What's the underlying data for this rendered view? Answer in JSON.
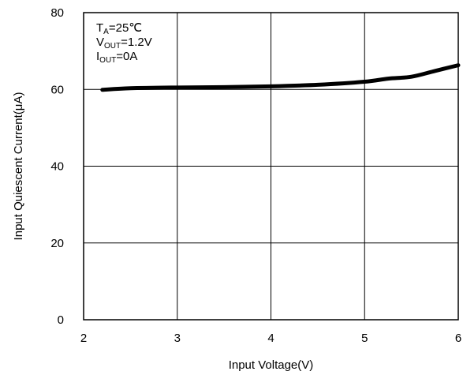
{
  "chart_data": {
    "type": "line",
    "title": "",
    "xlabel": "Input Voltage(V)",
    "ylabel": "Input Quiescent Current(μA)",
    "xlim": [
      2,
      6
    ],
    "ylim": [
      0,
      80
    ],
    "x_ticks": [
      "2",
      "3",
      "4",
      "5",
      "6"
    ],
    "y_ticks": [
      "0",
      "20",
      "40",
      "60",
      "80"
    ],
    "grid": true,
    "conditions": [
      {
        "main": "T",
        "sub": "A",
        "rest": "=25℃"
      },
      {
        "main": "V",
        "sub": "OUT",
        "rest": "=1.2V"
      },
      {
        "main": "I",
        "sub": "OUT",
        "rest": "=0A"
      }
    ],
    "series": [
      {
        "color": "#000000",
        "x": [
          2.2,
          2.5,
          3.0,
          3.5,
          4.0,
          4.5,
          5.0,
          5.25,
          5.5,
          5.75,
          6.0
        ],
        "y": [
          59.9,
          60.3,
          60.5,
          60.6,
          60.8,
          61.2,
          62.0,
          62.8,
          63.3,
          64.8,
          66.3
        ]
      }
    ]
  }
}
